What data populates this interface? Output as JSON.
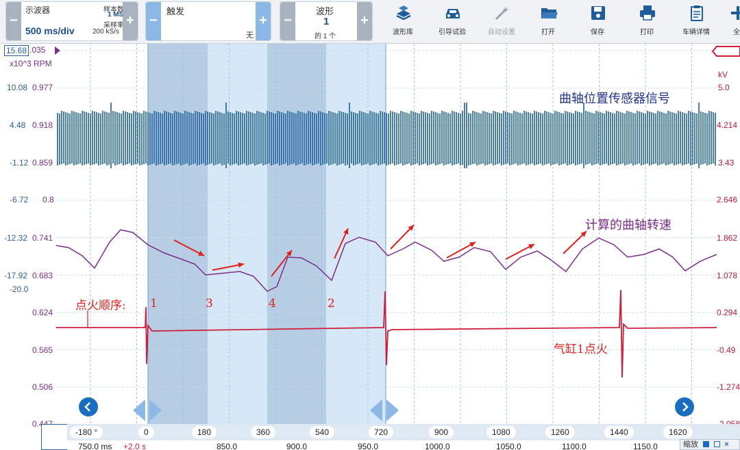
{
  "toolbar": {
    "scope": {
      "title": "示波器",
      "timebase": "500 ms/div",
      "samples_label": "样本数",
      "samples_value": "1 MS",
      "rate_label": "采样率",
      "rate_value": "200 kS/s"
    },
    "trigger": {
      "title": "触发",
      "value": "无"
    },
    "waveform": {
      "title": "波形",
      "number": "1",
      "of": "的 1 个"
    },
    "buttons": [
      {
        "label": "波形库",
        "icon": "books-icon",
        "enabled": true
      },
      {
        "label": "引导试验",
        "icon": "car-icon",
        "enabled": true
      },
      {
        "label": "自动设置",
        "icon": "wand-icon",
        "enabled": false
      },
      {
        "label": "打开",
        "icon": "folder-icon",
        "enabled": true
      },
      {
        "label": "保存",
        "icon": "floppy-disk-icon",
        "enabled": true
      },
      {
        "label": "打印",
        "icon": "printer-icon",
        "enabled": true
      },
      {
        "label": "车辆详情",
        "icon": "clipboard-icon",
        "enabled": true
      },
      {
        "label": "全",
        "icon": "plus-icon",
        "enabled": true
      }
    ]
  },
  "axes": {
    "left_a": {
      "top": "15.68",
      "unit": "x10^3 RPM",
      "ticks": [
        "10.08",
        "4.48",
        "-1.12",
        "-6.72",
        "-12.32",
        "-17.92",
        "-20.0"
      ]
    },
    "left_b": {
      "top": ".035",
      "ticks": [
        "0.977",
        "0.918",
        "0.859",
        "0.8",
        "0.741",
        "0.683",
        "0.624",
        "0.565",
        "0.506",
        "0.447"
      ]
    },
    "right": {
      "unit": "kV",
      "ticks": [
        "5.0",
        "4.214",
        "3.43",
        "2.646",
        "1.862",
        "1.078",
        "0.294",
        "-0.49",
        "-1.274",
        "-2.058"
      ]
    }
  },
  "annotations": {
    "crank_sensor": "曲轴位置传感器信号",
    "calc_speed": "计算的曲轴转速",
    "firing_order": "点火顺序:",
    "cyl_labels": [
      "1",
      "3",
      "4",
      "2"
    ],
    "cyl1_fire": "气缸1点火"
  },
  "ruler": {
    "degrees": [
      "-180 °",
      "0",
      "180",
      "360",
      "540",
      "720",
      "900",
      "1080",
      "1260",
      "1440",
      "1620"
    ],
    "times": [
      "750.0 ms",
      "+2.0 s",
      "850.0",
      "900.0",
      "950.0",
      "1000.0",
      "1050.0",
      "1100.0",
      "1150.0"
    ]
  },
  "zoom": {
    "label": "缩放"
  },
  "colors": {
    "crank": "#1a5e9c",
    "speed": "#7b2d8b",
    "ignition": "#d01c3a",
    "arrow": "#e0201a",
    "band_light": "#d6e7f7",
    "band_dark": "#b7cde4",
    "left_axis_a": "#2b5fa3",
    "left_axis_b": "#7b2d8b",
    "right_axis": "#c0183a"
  }
}
